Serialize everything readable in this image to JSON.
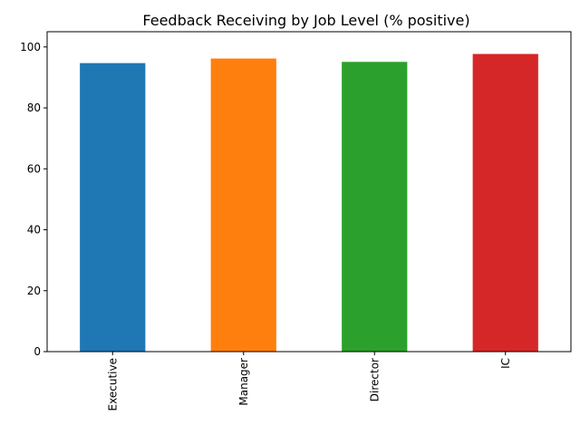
{
  "chart_data": {
    "type": "bar",
    "title": "Feedback Receiving by Job Level (% positive)",
    "xlabel": "",
    "ylabel": "",
    "categories": [
      "Executive",
      "Manager",
      "Director",
      "IC"
    ],
    "values": [
      94.7,
      96.2,
      95.1,
      97.7
    ],
    "colors": [
      "#1f77b4",
      "#ff7f0e",
      "#2ca02c",
      "#d62728"
    ],
    "ylim": [
      0,
      100
    ],
    "yticks": [
      0,
      20,
      40,
      60,
      80,
      100
    ],
    "grid": false,
    "legend": "none"
  }
}
